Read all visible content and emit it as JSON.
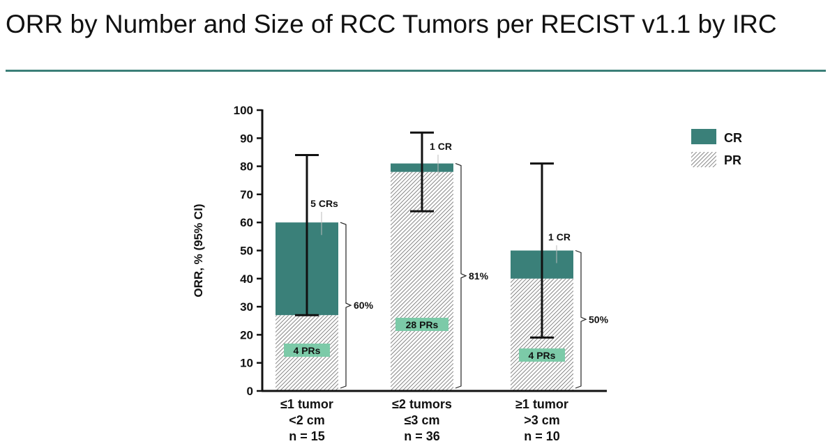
{
  "title": "ORR by Number and Size of RCC Tumors per RECIST v1.1 by IRC",
  "colors": {
    "accent": "#3b7f78",
    "cr": "#3a8079",
    "pr_hatch": "#555555",
    "pr_label_bg": "#7ccaa8"
  },
  "chart_data": {
    "type": "bar",
    "stacked": true,
    "ylabel": "ORR, % (95% CI)",
    "ylim": [
      0,
      100
    ],
    "yticks": [
      0,
      10,
      20,
      30,
      40,
      50,
      60,
      70,
      80,
      90,
      100
    ],
    "categories": [
      [
        "≤1 tumor",
        "<2 cm",
        "n = 15"
      ],
      [
        "≤2 tumors",
        "≤3 cm",
        "n = 36"
      ],
      [
        "≥1 tumor",
        ">3 cm",
        "n = 10"
      ]
    ],
    "series": [
      {
        "name": "PR",
        "values": [
          27,
          78,
          40
        ]
      },
      {
        "name": "CR",
        "values": [
          33,
          3,
          10
        ]
      }
    ],
    "totals": [
      60,
      81,
      50
    ],
    "total_labels": [
      "60%",
      "81%",
      "50%"
    ],
    "ci": [
      [
        27,
        84
      ],
      [
        64,
        92
      ],
      [
        19,
        81
      ]
    ],
    "cr_labels": [
      "5 CRs",
      "1 CR",
      "1 CR"
    ],
    "pr_labels": [
      "4 PRs",
      "28 PRs",
      "4 PRs"
    ],
    "legend": {
      "position": "top-right",
      "items": [
        "CR",
        "PR"
      ]
    }
  }
}
